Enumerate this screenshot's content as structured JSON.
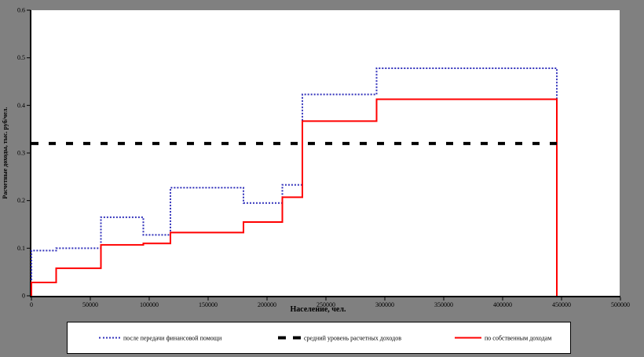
{
  "figure": {
    "background_color": "#808080",
    "plot_background_color": "#ffffff",
    "axis_color": "#000000"
  },
  "chart_data": {
    "type": "step-line histogram outline (two series) with dashed reference line",
    "title": "",
    "xlabel": "Население, чел.",
    "ylabel": "Расчетные доходы, тыс. руб/чел.",
    "xlim": [
      0,
      500000
    ],
    "ylim": [
      0,
      0.6
    ],
    "grid": "off",
    "legend_position": "bottom",
    "x_tick_values": [
      0,
      50000,
      100000,
      150000,
      200000,
      250000,
      300000,
      350000,
      400000,
      450000,
      500000
    ],
    "x_tick_labels": [
      "0",
      "50000",
      "100000",
      "150000",
      "200000",
      "250000",
      "300000",
      "350000",
      "400000",
      "450000",
      "500000"
    ],
    "y_tick_values": [
      0,
      0.1,
      0.2,
      0.3,
      0.4,
      0.5,
      0.6
    ],
    "y_tick_labels": [
      "0",
      "0.1",
      "0.2",
      "0.3",
      "0.4",
      "0.5",
      "0.6"
    ],
    "bin_edges": [
      0,
      21000,
      59000,
      95000,
      118000,
      180000,
      213000,
      230000,
      293000,
      446000
    ],
    "series": [
      {
        "name": "после передачи финансовой помощи",
        "color": "#3232bb",
        "line_style": "dotted",
        "values": [
          0.095,
          0.1,
          0.165,
          0.128,
          0.227,
          0.195,
          0.233,
          0.423,
          0.478
        ]
      },
      {
        "name": "по собственным доходам",
        "color": "#ff0000",
        "line_style": "solid",
        "values": [
          0.028,
          0.058,
          0.107,
          0.11,
          0.133,
          0.155,
          0.207,
          0.367,
          0.413
        ]
      }
    ],
    "reference_line": {
      "name": "средний уровень расчетных доходов",
      "value": 0.32,
      "color": "#000000",
      "line_style": "dashed",
      "x_range": [
        0,
        449000
      ]
    }
  },
  "legend": {
    "items": [
      {
        "swatch": "blue-dotted-line",
        "label": "после передачи финансовой помощи"
      },
      {
        "swatch": "black-dashed-line",
        "label": "средний уровень расчетных доходов"
      },
      {
        "swatch": "red-solid-line",
        "label": "по собственным доходам"
      }
    ]
  }
}
